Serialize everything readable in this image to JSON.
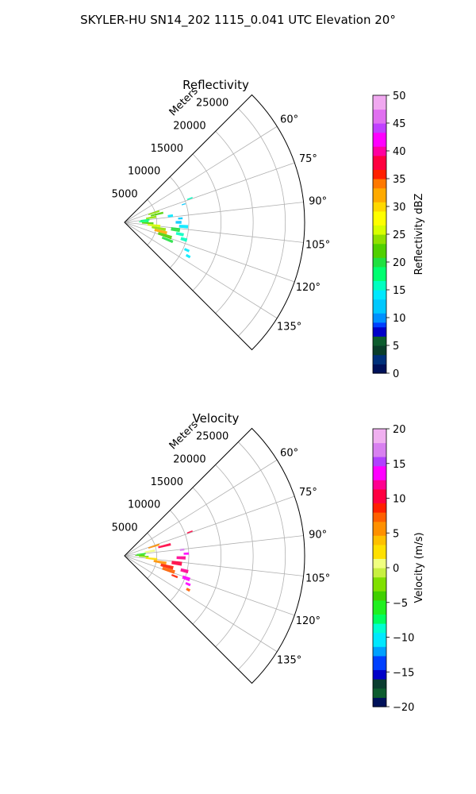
{
  "figure": {
    "title": "SKYLER-HU  SN14_202  1115_0.041 UTC Elevation 20°"
  },
  "chart_data": [
    {
      "type": "polar-sector-scatter",
      "title": "Reflectivity",
      "range_label": "Meters",
      "range_ticks": [
        5000,
        10000,
        15000,
        20000,
        25000
      ],
      "range_max": 28000,
      "azimuth_ticks": [
        "60°",
        "75°",
        "90°",
        "105°",
        "120°",
        "135°"
      ],
      "azimuth_min": 45,
      "azimuth_max": 135,
      "colorbar": {
        "label": "Reflectivity dBZ",
        "min": 0,
        "max": 50,
        "ticks": [
          "0",
          "5",
          "10",
          "15",
          "20",
          "25",
          "30",
          "35",
          "40",
          "45",
          "50"
        ]
      },
      "echo_cells": [
        {
          "az": 70,
          "r": 10800,
          "da": 1,
          "dr": 900,
          "v": 16
        },
        {
          "az": 73,
          "r": 9600,
          "da": 1,
          "dr": 600,
          "v": 12
        },
        {
          "az": 72,
          "r": 4800,
          "da": 3,
          "dr": 1800,
          "v": 23
        },
        {
          "az": 76,
          "r": 5200,
          "da": 3,
          "dr": 2000,
          "v": 21
        },
        {
          "az": 80,
          "r": 4200,
          "da": 4,
          "dr": 1600,
          "v": 24
        },
        {
          "az": 84,
          "r": 3200,
          "da": 4,
          "dr": 1400,
          "v": 17
        },
        {
          "az": 88,
          "r": 3000,
          "da": 4,
          "dr": 1500,
          "v": 18
        },
        {
          "az": 82,
          "r": 7200,
          "da": 3,
          "dr": 800,
          "v": 14
        },
        {
          "az": 92,
          "r": 3600,
          "da": 4,
          "dr": 1800,
          "v": 21
        },
        {
          "az": 96,
          "r": 4600,
          "da": 4,
          "dr": 2000,
          "v": 25
        },
        {
          "az": 100,
          "r": 5400,
          "da": 4,
          "dr": 2200,
          "v": 23
        },
        {
          "az": 104,
          "r": 5800,
          "da": 4,
          "dr": 2000,
          "v": 31
        },
        {
          "az": 108,
          "r": 6600,
          "da": 4,
          "dr": 2200,
          "v": 22
        },
        {
          "az": 112,
          "r": 7200,
          "da": 3,
          "dr": 1800,
          "v": 19
        },
        {
          "az": 98,
          "r": 8000,
          "da": 4,
          "dr": 1400,
          "v": 20
        },
        {
          "az": 102,
          "r": 8800,
          "da": 3,
          "dr": 1200,
          "v": 16
        },
        {
          "az": 106,
          "r": 9600,
          "da": 3,
          "dr": 1000,
          "v": 15
        },
        {
          "az": 94,
          "r": 9200,
          "da": 3,
          "dr": 1400,
          "v": 14
        },
        {
          "az": 114,
          "r": 10600,
          "da": 2,
          "dr": 800,
          "v": 13
        },
        {
          "az": 118,
          "r": 11200,
          "da": 2,
          "dr": 700,
          "v": 14
        },
        {
          "az": 90,
          "r": 8400,
          "da": 3,
          "dr": 900,
          "v": 12
        },
        {
          "az": 86,
          "r": 8700,
          "da": 2,
          "dr": 700,
          "v": 11
        }
      ]
    },
    {
      "type": "polar-sector-scatter",
      "title": "Velocity",
      "range_label": "Meters",
      "range_ticks": [
        5000,
        10000,
        15000,
        20000,
        25000
      ],
      "range_max": 28000,
      "azimuth_ticks": [
        "60°",
        "75°",
        "90°",
        "105°",
        "120°",
        "135°"
      ],
      "azimuth_min": 45,
      "azimuth_max": 135,
      "colorbar": {
        "label": "Velocity (m/s)",
        "min": -20,
        "max": 20,
        "ticks": [
          "−20",
          "−15",
          "−10",
          "−5",
          "0",
          "5",
          "10",
          "15",
          "20"
        ]
      },
      "echo_cells": [
        {
          "az": 70,
          "r": 10800,
          "da": 1,
          "dr": 900,
          "v": 11
        },
        {
          "az": 72,
          "r": 4800,
          "da": 3,
          "dr": 1800,
          "v": 6
        },
        {
          "az": 76,
          "r": 6400,
          "da": 3,
          "dr": 2000,
          "v": 11
        },
        {
          "az": 80,
          "r": 4000,
          "da": 4,
          "dr": 1600,
          "v": 1
        },
        {
          "az": 84,
          "r": 2600,
          "da": 4,
          "dr": 1400,
          "v": -5
        },
        {
          "az": 88,
          "r": 2400,
          "da": 4,
          "dr": 1500,
          "v": -4
        },
        {
          "az": 92,
          "r": 3000,
          "da": 4,
          "dr": 1500,
          "v": -2
        },
        {
          "az": 96,
          "r": 4200,
          "da": 4,
          "dr": 1800,
          "v": 3
        },
        {
          "az": 100,
          "r": 5600,
          "da": 4,
          "dr": 2000,
          "v": 6
        },
        {
          "az": 104,
          "r": 6800,
          "da": 4,
          "dr": 2000,
          "v": 9
        },
        {
          "az": 108,
          "r": 7200,
          "da": 4,
          "dr": 2000,
          "v": 7
        },
        {
          "az": 98,
          "r": 8200,
          "da": 4,
          "dr": 1600,
          "v": 10
        },
        {
          "az": 92,
          "r": 8800,
          "da": 3,
          "dr": 1400,
          "v": 12
        },
        {
          "az": 88,
          "r": 9600,
          "da": 2,
          "dr": 800,
          "v": 14
        },
        {
          "az": 104,
          "r": 9600,
          "da": 3,
          "dr": 1200,
          "v": 12
        },
        {
          "az": 110,
          "r": 10200,
          "da": 3,
          "dr": 1200,
          "v": 13
        },
        {
          "az": 114,
          "r": 10800,
          "da": 2,
          "dr": 800,
          "v": 14
        },
        {
          "az": 112,
          "r": 8400,
          "da": 2,
          "dr": 1000,
          "v": 8
        },
        {
          "az": 118,
          "r": 11200,
          "da": 2,
          "dr": 600,
          "v": 7
        },
        {
          "az": 84,
          "r": 9000,
          "da": 2,
          "dr": 700,
          "v": 16
        }
      ]
    }
  ]
}
